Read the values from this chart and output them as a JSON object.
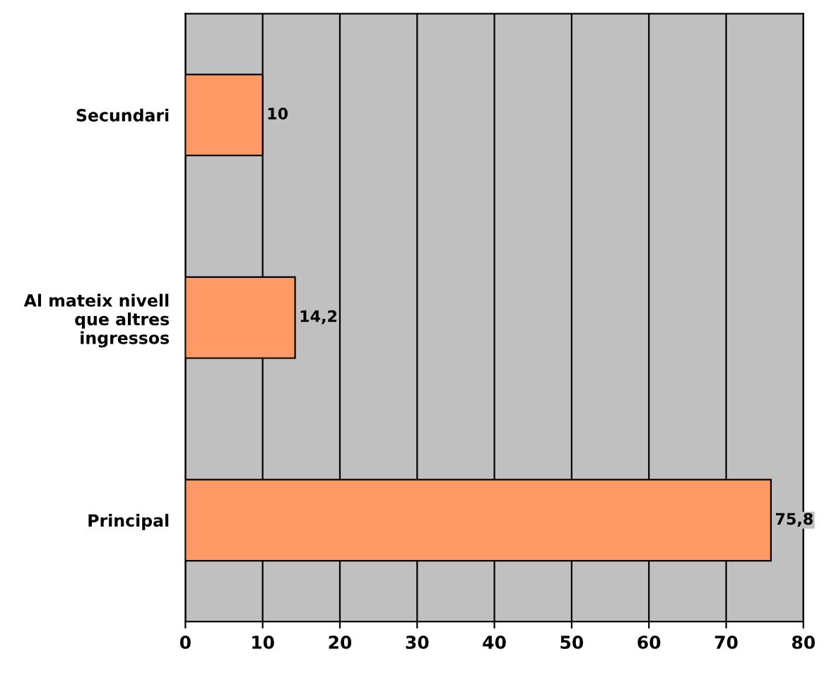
{
  "chart_data": {
    "type": "bar",
    "orientation": "horizontal",
    "categories": [
      "Secundari",
      "Al mateix nivell\nque altres\ningressos",
      "Principal"
    ],
    "values": [
      10,
      14.2,
      75.8
    ],
    "value_labels": [
      "10",
      "14,2",
      "75,8"
    ],
    "color": "#ff9966",
    "xlim": [
      0,
      80
    ],
    "xticks": [
      0,
      10,
      20,
      30,
      40,
      50,
      60,
      70,
      80
    ],
    "grid": "x",
    "legend": false
  }
}
